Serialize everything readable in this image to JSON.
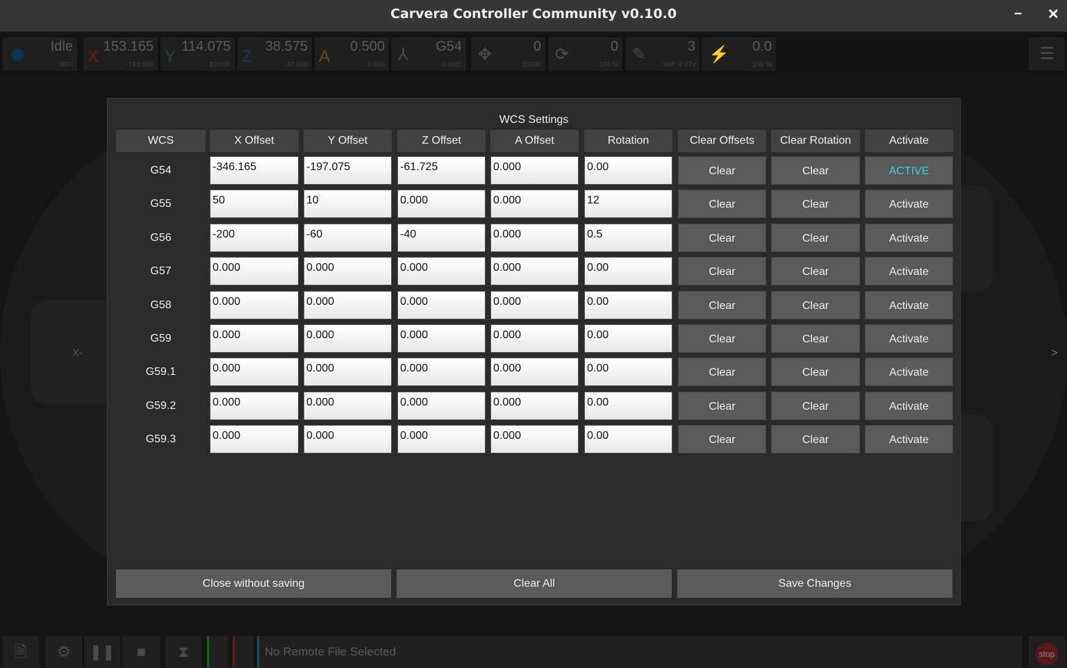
{
  "window": {
    "title": "Carvera Controller Community v0.10.0",
    "minimize": "–",
    "close": "✕"
  },
  "status": {
    "state": "Idle",
    "connection": "WiFi",
    "x": {
      "label": "X",
      "value": "153.165",
      "machine": "-193.000",
      "color": "#7a1e1e"
    },
    "y": {
      "label": "Y",
      "value": "114.075",
      "machine": "-83.000",
      "color": "#1e5a2a"
    },
    "z": {
      "label": "Z",
      "value": "38.575",
      "machine": "-37.000",
      "color": "#1e4a6a"
    },
    "a": {
      "label": "A",
      "value": "0.500",
      "machine": "0.500",
      "color": "#6a621e"
    },
    "wcs": {
      "value": "G54",
      "sub": "0.000°"
    },
    "feed": {
      "value": "0",
      "sub": "10000"
    },
    "spindle": {
      "value": "0",
      "sub": "100 %"
    },
    "tool": {
      "value": "3",
      "sub": "WP: 4.07v"
    },
    "laser": {
      "value": "0.0",
      "sub": "100 %"
    }
  },
  "background": {
    "left_label": "X-",
    "right_arrow": ">"
  },
  "dialog": {
    "title": "WCS Settings",
    "headers": [
      "WCS",
      "X Offset",
      "Y Offset",
      "Z Offset",
      "A Offset",
      "Rotation",
      "Clear Offsets",
      "Clear Rotation",
      "Activate"
    ],
    "rows": [
      {
        "wcs": "G54",
        "x": "-346.165",
        "y": "-197.075",
        "z": "-61.725",
        "a": "0.000",
        "rot": "0.00",
        "clear_offsets": "Clear",
        "clear_rotation": "Clear",
        "activate": "ACTIVE",
        "active": true
      },
      {
        "wcs": "G55",
        "x": "50",
        "y": "10",
        "z": "0.000",
        "a": "0.000",
        "rot": "12",
        "clear_offsets": "Clear",
        "clear_rotation": "Clear",
        "activate": "Activate"
      },
      {
        "wcs": "G56",
        "x": "-200",
        "y": "-60",
        "z": "-40",
        "a": "0.000",
        "rot": "0.5",
        "clear_offsets": "Clear",
        "clear_rotation": "Clear",
        "activate": "Activate"
      },
      {
        "wcs": "G57",
        "x": "0.000",
        "y": "0.000",
        "z": "0.000",
        "a": "0.000",
        "rot": "0.00",
        "clear_offsets": "Clear",
        "clear_rotation": "Clear",
        "activate": "Activate"
      },
      {
        "wcs": "G58",
        "x": "0.000",
        "y": "0.000",
        "z": "0.000",
        "a": "0.000",
        "rot": "0.00",
        "clear_offsets": "Clear",
        "clear_rotation": "Clear",
        "activate": "Activate"
      },
      {
        "wcs": "G59",
        "x": "0.000",
        "y": "0.000",
        "z": "0.000",
        "a": "0.000",
        "rot": "0.00",
        "clear_offsets": "Clear",
        "clear_rotation": "Clear",
        "activate": "Activate"
      },
      {
        "wcs": "G59.1",
        "x": "0.000",
        "y": "0.000",
        "z": "0.000",
        "a": "0.000",
        "rot": "0.00",
        "clear_offsets": "Clear",
        "clear_rotation": "Clear",
        "activate": "Activate"
      },
      {
        "wcs": "G59.2",
        "x": "0.000",
        "y": "0.000",
        "z": "0.000",
        "a": "0.000",
        "rot": "0.00",
        "clear_offsets": "Clear",
        "clear_rotation": "Clear",
        "activate": "Activate"
      },
      {
        "wcs": "G59.3",
        "x": "0.000",
        "y": "0.000",
        "z": "0.000",
        "a": "0.000",
        "rot": "0.00",
        "clear_offsets": "Clear",
        "clear_rotation": "Clear",
        "activate": "Activate"
      }
    ],
    "close_without_saving": "Close without saving",
    "clear_all": "Clear All",
    "save_changes": "Save Changes"
  },
  "bottom": {
    "file": "No Remote File Selected",
    "stop": "stop"
  },
  "colors": {
    "active": "#2fd4e0"
  }
}
